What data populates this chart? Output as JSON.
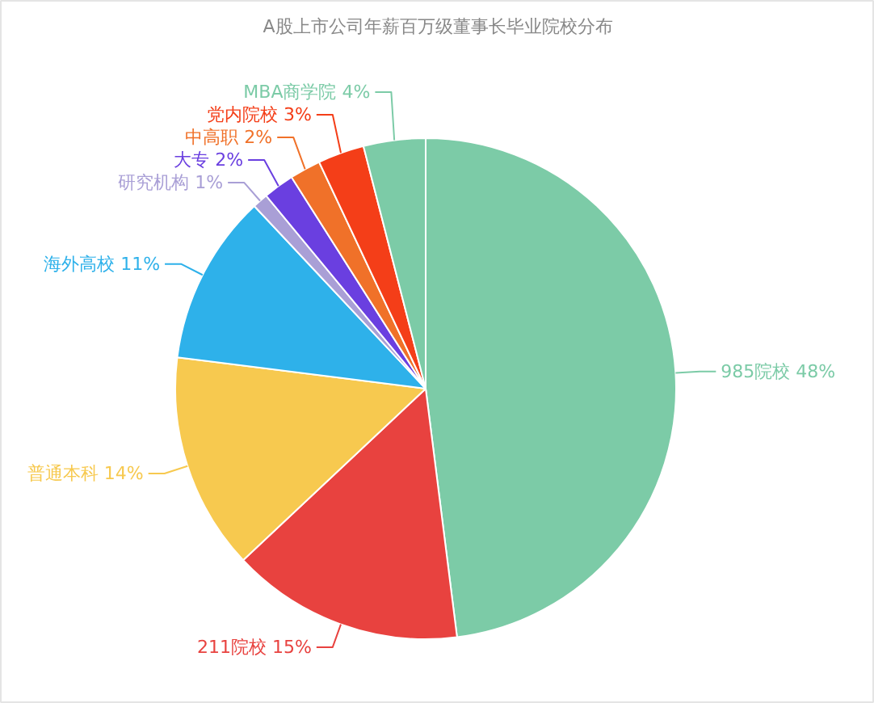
{
  "chart_data": {
    "type": "pie",
    "title": "A股上市公司年薪百万级董事长毕业院校分布",
    "categories": [
      "985院校",
      "211院校",
      "普通本科",
      "海外高校",
      "研究机构",
      "大专",
      "中高职",
      "党内院校",
      "MBA商学院"
    ],
    "values": [
      48,
      15,
      14,
      11,
      1,
      2,
      2,
      3,
      4
    ],
    "value_labels": [
      "48%",
      "15%",
      "14%",
      "11%",
      "1%",
      "2%",
      "2%",
      "3%",
      "4%"
    ],
    "colors": [
      "#7ccba7",
      "#e8423f",
      "#f7c94f",
      "#2eb1ea",
      "#a99fd6",
      "#6a3fe0",
      "#f07129",
      "#f43e18",
      "#7ccba7"
    ]
  }
}
